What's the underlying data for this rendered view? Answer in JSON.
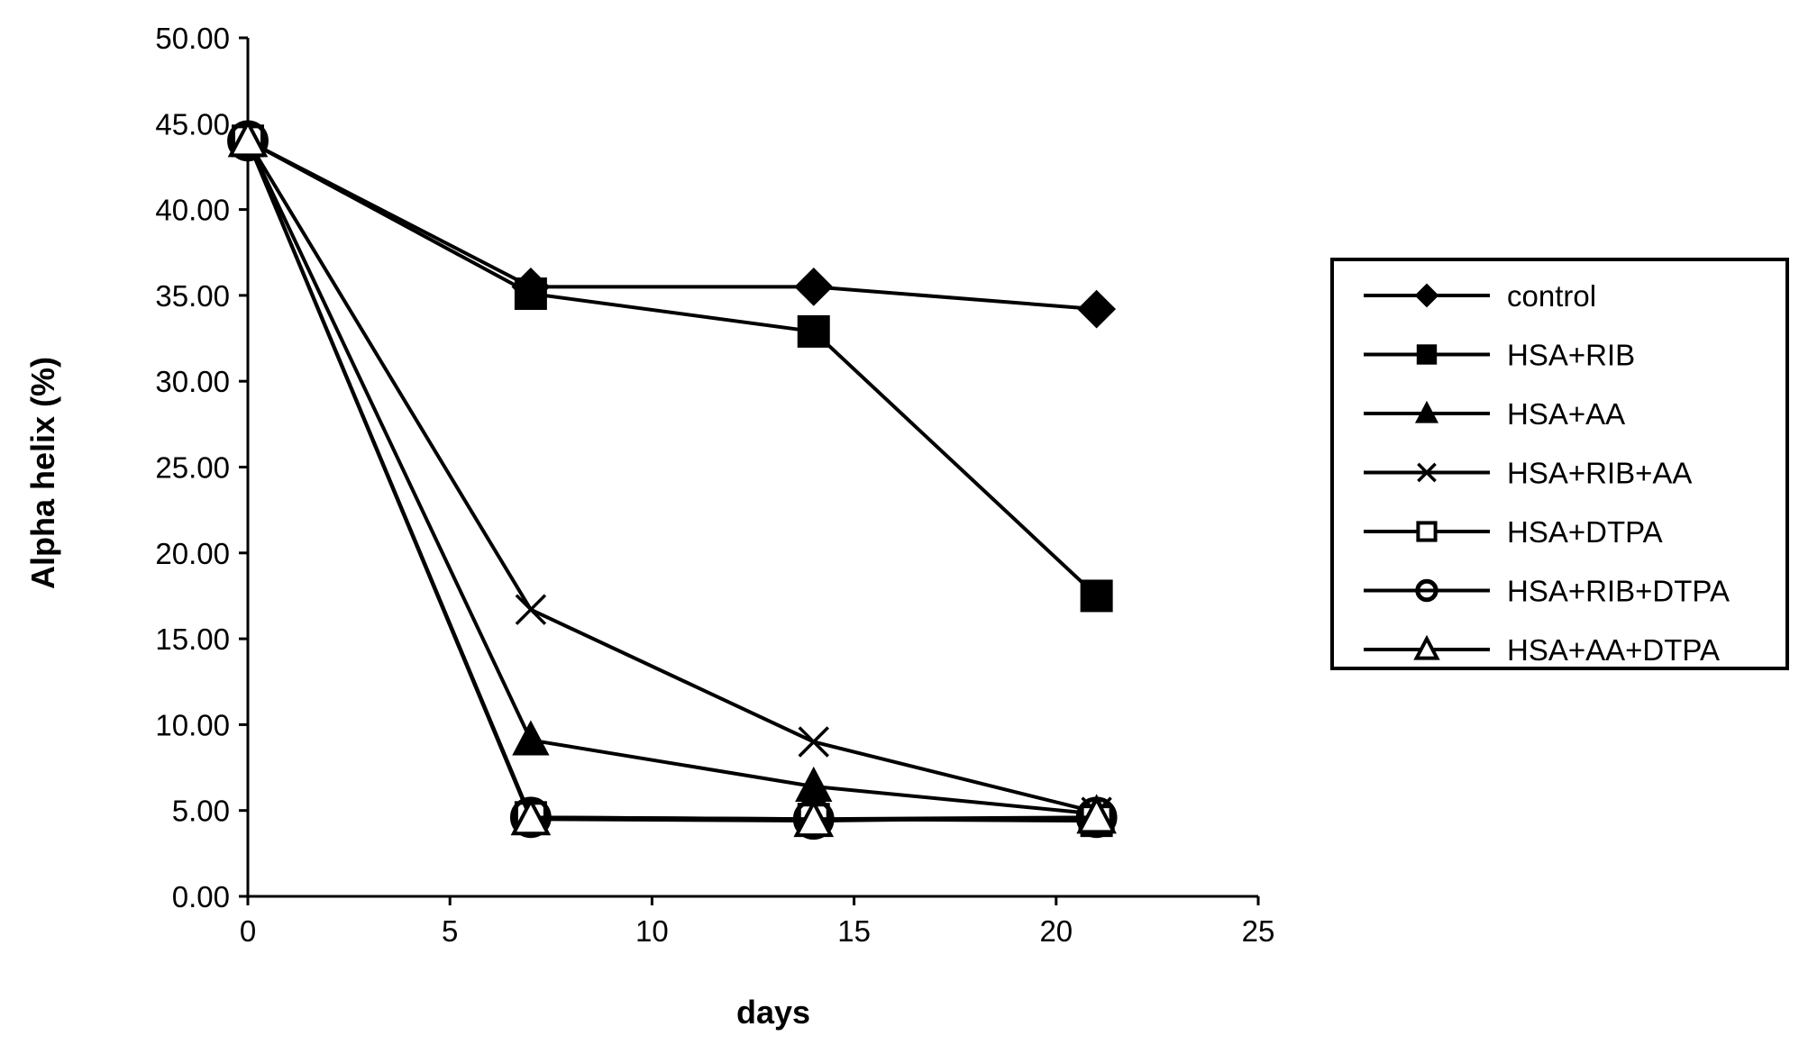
{
  "chart_data": {
    "type": "line",
    "title": "",
    "xlabel": "days",
    "ylabel": "Alpha helix (%)",
    "xlim": [
      0,
      25
    ],
    "ylim": [
      0,
      50
    ],
    "x_ticks": [
      "0",
      "5",
      "10",
      "15",
      "20",
      "25"
    ],
    "y_ticks": [
      "0.00",
      "5.00",
      "10.00",
      "15.00",
      "20.00",
      "25.00",
      "30.00",
      "35.00",
      "40.00",
      "45.00",
      "50.00"
    ],
    "grid": false,
    "legend_position": "right",
    "x": [
      0,
      7,
      14,
      21
    ],
    "series": [
      {
        "name": "control",
        "marker": "diamond-filled",
        "values": [
          44.0,
          35.5,
          35.5,
          34.2
        ]
      },
      {
        "name": "HSA+RIB",
        "marker": "square-filled",
        "values": [
          44.0,
          35.1,
          32.9,
          17.5
        ]
      },
      {
        "name": "HSA+AA",
        "marker": "triangle-filled",
        "values": [
          44.0,
          9.1,
          6.4,
          4.8
        ]
      },
      {
        "name": "HSA+RIB+AA",
        "marker": "x-cross",
        "values": [
          44.0,
          16.7,
          9.0,
          4.9
        ]
      },
      {
        "name": "HSA+DTPA",
        "marker": "square-open",
        "values": [
          44.0,
          4.6,
          4.5,
          4.4
        ]
      },
      {
        "name": "HSA+RIB+DTPA",
        "marker": "circle-open",
        "values": [
          44.0,
          4.6,
          4.5,
          4.6
        ]
      },
      {
        "name": "HSA+AA+DTPA",
        "marker": "triangle-open",
        "values": [
          44.0,
          4.5,
          4.4,
          4.6
        ]
      }
    ]
  }
}
